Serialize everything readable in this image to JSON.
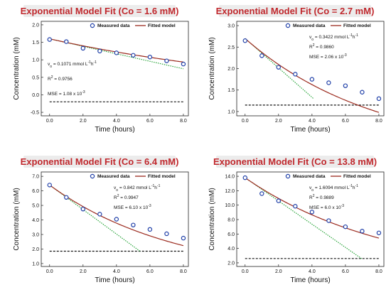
{
  "chart_data": [
    {
      "type": "scatter",
      "title": "Exponential Model Fit (Co = 1.6 mM)",
      "xlabel": "Time (hours)",
      "ylabel": "Concentration (mM)",
      "xlim": [
        -0.5,
        8.3
      ],
      "ylim": [
        -0.6,
        2.1
      ],
      "xticks": [
        "0.0",
        "2.0",
        "4.0",
        "6.0",
        "8.0"
      ],
      "xtick_values": [
        0,
        2,
        4,
        6,
        8
      ],
      "yticks": [
        "-0.5",
        "0.0",
        "0.5",
        "1.0",
        "1.5",
        "2.0"
      ],
      "ytick_values": [
        -0.5,
        0,
        0.5,
        1.0,
        1.5,
        2.0
      ],
      "legend": [
        "Measured data",
        "Fitted model"
      ],
      "measured_x": [
        0,
        1,
        2,
        3,
        4,
        5,
        6,
        7,
        8
      ],
      "measured_y": [
        1.58,
        1.52,
        1.33,
        1.25,
        1.2,
        1.13,
        1.08,
        0.97,
        0.88
      ],
      "fit_c0": 1.6,
      "fit_k": 0.0669,
      "fit_line_color": "#9b2a1e",
      "tangent_end_x": 8,
      "dashed_y": -0.2,
      "annotations": {
        "vo_prefix": "v",
        "vo_sub": "o",
        "vo_value": " = 0.1071 mmol L",
        "vo_exp1": "-1",
        "vo_mid": "h",
        "vo_exp2": "-1",
        "r2_prefix": "R",
        "r2_sup": "2",
        "r2_value": " = 0.9756",
        "mse_text": "MSE = 1.08 x 10",
        "mse_exp": "-3"
      }
    },
    {
      "type": "scatter",
      "title": "Exponential Model Fit (Co = 2.7 mM)",
      "xlabel": "Time (hours)",
      "ylabel": "Concentration (mM)",
      "xlim": [
        -0.5,
        8.3
      ],
      "ylim": [
        0.9,
        3.1
      ],
      "xticks": [
        "0.0",
        "2.0",
        "4.0",
        "6.0",
        "8.0"
      ],
      "xtick_values": [
        0,
        2,
        4,
        6,
        8
      ],
      "yticks": [
        "1.0",
        "1.5",
        "2.0",
        "2.5",
        "3.0"
      ],
      "ytick_values": [
        1.0,
        1.5,
        2.0,
        2.5,
        3.0
      ],
      "legend": [
        "Measured data",
        "Fitted model"
      ],
      "measured_x": [
        0,
        1,
        2,
        3,
        4,
        5,
        6,
        7,
        8
      ],
      "measured_y": [
        2.65,
        2.3,
        2.03,
        1.87,
        1.75,
        1.67,
        1.6,
        1.45,
        1.3
      ],
      "fit_c0": 2.7,
      "fit_k": 0.1267,
      "fit_line_color": "#9b2a1e",
      "tangent_end_x": 4.1,
      "dashed_y": 1.15,
      "annotations": {
        "vo_prefix": "v",
        "vo_sub": "o",
        "vo_value": " = 0.3422 mmol L",
        "vo_exp1": "-1",
        "vo_mid": "h",
        "vo_exp2": "-1",
        "r2_prefix": "R",
        "r2_sup": "2",
        "r2_value": " = 0.9860",
        "mse_text": "MSE = 2.06 x 10",
        "mse_exp": "-3"
      }
    },
    {
      "type": "scatter",
      "title": "Exponential Model Fit (Co = 6.4 mM)",
      "xlabel": "Time (hours)",
      "ylabel": "Concentration (mM)",
      "xlim": [
        -0.5,
        8.3
      ],
      "ylim": [
        0.8,
        7.3
      ],
      "xticks": [
        "0.0",
        "2.0",
        "4.0",
        "6.0",
        "8.0"
      ],
      "xtick_values": [
        0,
        2,
        4,
        6,
        8
      ],
      "yticks": [
        "1.0",
        "2.0",
        "3.0",
        "4.0",
        "5.0",
        "6.0",
        "7.0"
      ],
      "ytick_values": [
        1,
        2,
        3,
        4,
        5,
        6,
        7
      ],
      "legend": [
        "Measured data",
        "Fitted model"
      ],
      "measured_x": [
        0,
        1,
        2,
        3,
        4,
        5,
        6,
        7,
        8
      ],
      "measured_y": [
        6.4,
        5.55,
        4.75,
        4.4,
        4.05,
        3.65,
        3.35,
        3.05,
        2.75
      ],
      "fit_c0": 6.4,
      "fit_k": 0.1316,
      "fit_line_color": "#9b2a1e",
      "tangent_end_x": 5.4,
      "dashed_y": 1.85,
      "annotations": {
        "vo_prefix": "v",
        "vo_sub": "o",
        "vo_value": " = 0.842 mmol L",
        "vo_exp1": "-1",
        "vo_mid": "h",
        "vo_exp2": "-1",
        "r2_prefix": "R",
        "r2_sup": "2",
        "r2_value": " = 0.9947",
        "mse_text": "MSE = 6.10 x 10",
        "mse_exp": "-3"
      }
    },
    {
      "type": "scatter",
      "title": "Exponential Model Fit (Co = 13.8 mM)",
      "xlabel": "Time (hours)",
      "ylabel": "Concentration (mM)",
      "xlim": [
        -0.5,
        8.3
      ],
      "ylim": [
        1.5,
        14.6
      ],
      "xticks": [
        "0.0",
        "2.0",
        "4.0",
        "6.0",
        "8.0"
      ],
      "xtick_values": [
        0,
        2,
        4,
        6,
        8
      ],
      "yticks": [
        "2.0",
        "4.0",
        "6.0",
        "8.0",
        "10.0",
        "12.0",
        "14.0"
      ],
      "ytick_values": [
        2,
        4,
        6,
        8,
        10,
        12,
        14
      ],
      "legend": [
        "Measured data",
        "Fitted model"
      ],
      "measured_x": [
        0,
        1,
        2,
        3,
        4,
        5,
        6,
        7,
        8
      ],
      "measured_y": [
        13.8,
        11.6,
        10.6,
        9.85,
        9.05,
        7.85,
        7.0,
        6.4,
        6.15
      ],
      "fit_c0": 13.8,
      "fit_k": 0.1166,
      "fit_line_color": "#9b2a1e",
      "tangent_end_x": 7.0,
      "dashed_y": 2.6,
      "annotations": {
        "vo_prefix": "v",
        "vo_sub": "o",
        "vo_value": " = 1.6094 mmol L",
        "vo_exp1": "-1",
        "vo_mid": "h",
        "vo_exp2": "-1",
        "r2_prefix": "R",
        "r2_sup": "2",
        "r2_value": " = 0.9889",
        "mse_text": "MSE = 6.0 x 10",
        "mse_exp": "-3"
      }
    }
  ],
  "colors": {
    "title": "#c0282d",
    "marker_stroke": "#1f3fa8",
    "fit_line": "#9b2a1e",
    "tangent": "#1a9e2c",
    "baseline": "#111111"
  }
}
